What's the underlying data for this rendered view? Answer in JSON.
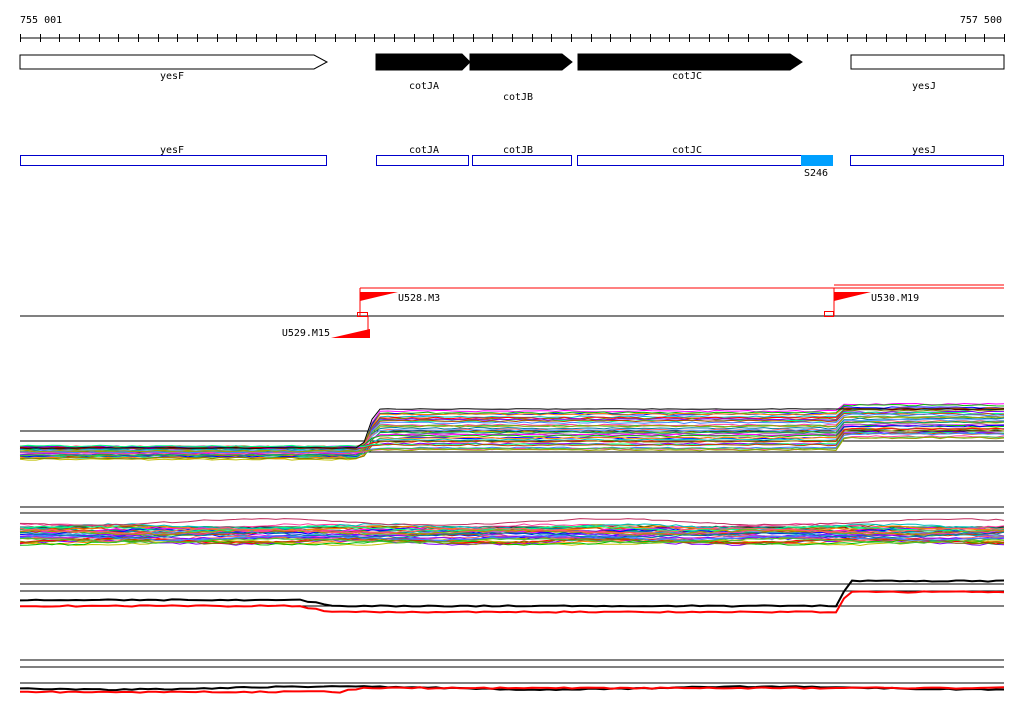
{
  "coords": {
    "start_label": "755 001",
    "end_label": "757 500",
    "start": 755001,
    "end": 757500
  },
  "colors": {
    "blue_outline": "#0000cc",
    "selected_fill": "#00a0ff",
    "red": "#ff0000",
    "black": "#000000"
  },
  "genes": [
    {
      "id": "yesF",
      "label": "yesF",
      "strand": "+",
      "style": "open"
    },
    {
      "id": "cotJA",
      "label": "cotJA",
      "strand": "+",
      "style": "filled"
    },
    {
      "id": "cotJB",
      "label": "cotJB",
      "strand": "+",
      "style": "filled"
    },
    {
      "id": "cotJC",
      "label": "cotJC",
      "strand": "+",
      "style": "filled"
    },
    {
      "id": "yesJ",
      "label": "yesJ",
      "strand": "+",
      "style": "open"
    }
  ],
  "cds_track": [
    {
      "label": "yesF"
    },
    {
      "label": "cotJA"
    },
    {
      "label": "cotJB"
    },
    {
      "label": "cotJC"
    },
    {
      "label": "yesJ"
    }
  ],
  "selected_region": {
    "label": "S246"
  },
  "promoters": [
    {
      "label": "U528.M3",
      "strand": "+"
    },
    {
      "label": "U529.M15",
      "strand": "-"
    },
    {
      "label": "U530.M19",
      "strand": "+"
    }
  ],
  "expression_panels": [
    {
      "id": "panel-forward-many"
    },
    {
      "id": "panel-reverse-many"
    },
    {
      "id": "panel-forward-two"
    },
    {
      "id": "panel-reverse-two"
    }
  ]
}
